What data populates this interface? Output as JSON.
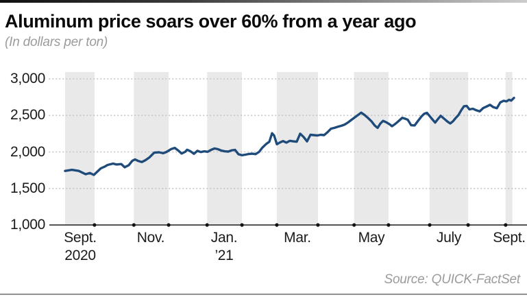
{
  "header": {
    "title": "Aluminum price soars over 60% from a year ago",
    "subtitle": "(In dollars per ton)"
  },
  "footer": {
    "source": "Source: QUICK-FactSet"
  },
  "chart_data": {
    "type": "line",
    "title": "Aluminum price soars over 60% from a year ago",
    "subtitle": "(In dollars per ton)",
    "source": "Source: QUICK-FactSet",
    "ylabel": "",
    "xlabel": "",
    "ylim": [
      1000,
      3000
    ],
    "ytick_values": [
      1000,
      1500,
      2000,
      2500,
      3000
    ],
    "ytick_labels": [
      "1,000",
      "1,500",
      "2,000",
      "2,500",
      "3,000"
    ],
    "grid": "dotted-horizontal",
    "legend": "none",
    "xtick_labels": [
      {
        "t": 0.033,
        "lines": [
          "Sept.",
          "2020"
        ]
      },
      {
        "t": 0.189,
        "lines": [
          "Nov."
        ]
      },
      {
        "t": 0.352,
        "lines": [
          "Jan.",
          "’21"
        ]
      },
      {
        "t": 0.514,
        "lines": [
          "Mar."
        ]
      },
      {
        "t": 0.677,
        "lines": [
          "May"
        ]
      },
      {
        "t": 0.849,
        "lines": [
          "July"
        ]
      },
      {
        "t": 0.982,
        "lines": [
          "Sept."
        ]
      }
    ],
    "month_tick_dots_t": [
      0.065,
      0.152,
      0.229,
      0.314,
      0.391,
      0.468,
      0.559,
      0.639,
      0.715,
      0.806,
      0.891,
      0.974
    ],
    "month_bands_t": [
      [
        0.0,
        0.065
      ],
      [
        0.152,
        0.229
      ],
      [
        0.314,
        0.391
      ],
      [
        0.468,
        0.559
      ],
      [
        0.639,
        0.715
      ],
      [
        0.806,
        0.891
      ],
      [
        0.974,
        0.989
      ]
    ],
    "colors": {
      "line": "#1e4b7a",
      "band": "#e9e9e9",
      "grid_dots": "#c5c5c5",
      "axis": "#1a1a1a",
      "tick_dot": "#111111"
    },
    "series": [
      {
        "name": "Aluminum price",
        "unit": "dollars per ton",
        "color": "#1e4b7a",
        "points": [
          [
            0.0,
            1740
          ],
          [
            0.0152,
            1755
          ],
          [
            0.0303,
            1740
          ],
          [
            0.0455,
            1695
          ],
          [
            0.0545,
            1712
          ],
          [
            0.0636,
            1685
          ],
          [
            0.0712,
            1730
          ],
          [
            0.0788,
            1775
          ],
          [
            0.0879,
            1800
          ],
          [
            0.0939,
            1822
          ],
          [
            0.1061,
            1840
          ],
          [
            0.1136,
            1828
          ],
          [
            0.1242,
            1834
          ],
          [
            0.1318,
            1790
          ],
          [
            0.1409,
            1820
          ],
          [
            0.1485,
            1878
          ],
          [
            0.1545,
            1898
          ],
          [
            0.1621,
            1875
          ],
          [
            0.1697,
            1862
          ],
          [
            0.1773,
            1885
          ],
          [
            0.1864,
            1925
          ],
          [
            0.197,
            1990
          ],
          [
            0.2076,
            1995
          ],
          [
            0.2167,
            1982
          ],
          [
            0.2242,
            2000
          ],
          [
            0.2348,
            2040
          ],
          [
            0.2424,
            2055
          ],
          [
            0.25,
            2020
          ],
          [
            0.2576,
            1978
          ],
          [
            0.2652,
            2000
          ],
          [
            0.2697,
            2030
          ],
          [
            0.2773,
            2008
          ],
          [
            0.2848,
            1975
          ],
          [
            0.2924,
            2015
          ],
          [
            0.3,
            1998
          ],
          [
            0.3076,
            2008
          ],
          [
            0.3152,
            2002
          ],
          [
            0.3227,
            2028
          ],
          [
            0.3303,
            2048
          ],
          [
            0.3379,
            2038
          ],
          [
            0.3455,
            2018
          ],
          [
            0.353,
            2008
          ],
          [
            0.3606,
            2005
          ],
          [
            0.3682,
            2022
          ],
          [
            0.3758,
            2028
          ],
          [
            0.3833,
            1968
          ],
          [
            0.3909,
            1955
          ],
          [
            0.3985,
            1962
          ],
          [
            0.4061,
            1972
          ],
          [
            0.4136,
            1976
          ],
          [
            0.4212,
            1970
          ],
          [
            0.4288,
            2000
          ],
          [
            0.4364,
            2060
          ],
          [
            0.4439,
            2105
          ],
          [
            0.4515,
            2140
          ],
          [
            0.4576,
            2255
          ],
          [
            0.4621,
            2225
          ],
          [
            0.4682,
            2105
          ],
          [
            0.4742,
            2128
          ],
          [
            0.4818,
            2148
          ],
          [
            0.4894,
            2128
          ],
          [
            0.497,
            2152
          ],
          [
            0.5045,
            2145
          ],
          [
            0.5121,
            2140
          ],
          [
            0.5197,
            2250
          ],
          [
            0.5273,
            2205
          ],
          [
            0.5348,
            2145
          ],
          [
            0.5424,
            2235
          ],
          [
            0.55,
            2230
          ],
          [
            0.5576,
            2225
          ],
          [
            0.5652,
            2235
          ],
          [
            0.5727,
            2230
          ],
          [
            0.5803,
            2270
          ],
          [
            0.5879,
            2318
          ],
          [
            0.5955,
            2330
          ],
          [
            0.603,
            2345
          ],
          [
            0.6106,
            2358
          ],
          [
            0.6182,
            2375
          ],
          [
            0.6258,
            2405
          ],
          [
            0.6333,
            2440
          ],
          [
            0.6409,
            2475
          ],
          [
            0.6485,
            2510
          ],
          [
            0.6545,
            2538
          ],
          [
            0.6621,
            2505
          ],
          [
            0.6697,
            2465
          ],
          [
            0.6773,
            2420
          ],
          [
            0.6848,
            2360
          ],
          [
            0.6909,
            2330
          ],
          [
            0.697,
            2388
          ],
          [
            0.703,
            2425
          ],
          [
            0.7106,
            2405
          ],
          [
            0.7182,
            2375
          ],
          [
            0.7227,
            2352
          ],
          [
            0.7303,
            2385
          ],
          [
            0.7379,
            2425
          ],
          [
            0.7455,
            2468
          ],
          [
            0.7515,
            2455
          ],
          [
            0.7576,
            2440
          ],
          [
            0.7652,
            2365
          ],
          [
            0.7727,
            2362
          ],
          [
            0.7803,
            2425
          ],
          [
            0.7879,
            2485
          ],
          [
            0.7939,
            2522
          ],
          [
            0.8,
            2535
          ],
          [
            0.8061,
            2490
          ],
          [
            0.8121,
            2445
          ],
          [
            0.8182,
            2402
          ],
          [
            0.8242,
            2450
          ],
          [
            0.8303,
            2495
          ],
          [
            0.8379,
            2455
          ],
          [
            0.8455,
            2415
          ],
          [
            0.8515,
            2390
          ],
          [
            0.8576,
            2420
          ],
          [
            0.8636,
            2465
          ],
          [
            0.8697,
            2505
          ],
          [
            0.8758,
            2570
          ],
          [
            0.8818,
            2625
          ],
          [
            0.8879,
            2630
          ],
          [
            0.8939,
            2582
          ],
          [
            0.9015,
            2592
          ],
          [
            0.9091,
            2570
          ],
          [
            0.9167,
            2555
          ],
          [
            0.9242,
            2600
          ],
          [
            0.9318,
            2622
          ],
          [
            0.9394,
            2645
          ],
          [
            0.947,
            2612
          ],
          [
            0.9545,
            2598
          ],
          [
            0.9621,
            2678
          ],
          [
            0.9697,
            2700
          ],
          [
            0.9758,
            2692
          ],
          [
            0.9818,
            2715
          ],
          [
            0.9864,
            2702
          ],
          [
            0.9924,
            2740
          ]
        ]
      }
    ]
  }
}
